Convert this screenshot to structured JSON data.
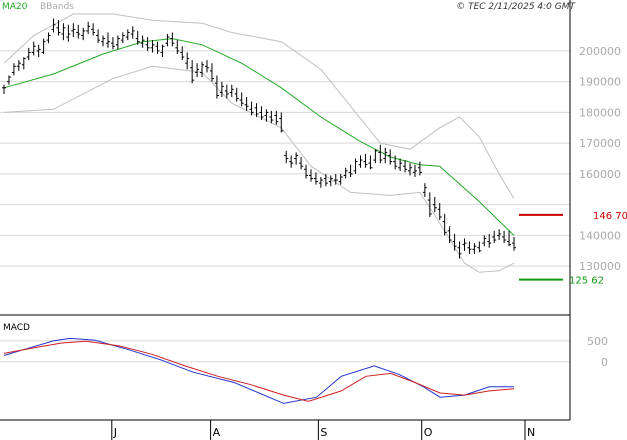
{
  "header": {
    "legend_ma": "MA20",
    "legend_bb": "BBands",
    "copyright": "© TEC 2/11/2025 4:0 GMT"
  },
  "colors": {
    "ma": "#22aa22",
    "bands": "#c0c0c0",
    "price": "#000000",
    "resistance": "#cc0000",
    "support": "#119911",
    "macd": "#2233cc",
    "signal": "#cc2222",
    "grid": "#d8d8d8",
    "axis": "#000000"
  },
  "chart_data": [
    {
      "type": "line",
      "panel": "price",
      "y_ticks": [
        130000,
        140000,
        150000,
        160000,
        170000,
        180000,
        190000,
        200000
      ],
      "y_tick_labels": [
        "130000",
        "140000",
        "",
        "160000",
        "170000",
        "180000",
        "190000",
        "200000"
      ],
      "ylim": [
        119000,
        212000
      ],
      "x_ticks": [
        "J",
        "A",
        "S",
        "O",
        "N"
      ],
      "x_tick_positions": [
        24,
        46,
        70,
        93,
        116
      ],
      "x_range": [
        0,
        127
      ],
      "ohlc": [
        [
          0,
          188000,
          189000,
          186000,
          188000
        ],
        [
          1,
          190000,
          192000,
          189000,
          191500
        ],
        [
          2,
          193000,
          196000,
          192000,
          195000
        ],
        [
          3,
          195000,
          197000,
          193500,
          196000
        ],
        [
          4,
          195500,
          198000,
          194000,
          197500
        ],
        [
          5,
          198000,
          201000,
          197000,
          199500
        ],
        [
          6,
          199500,
          203000,
          198500,
          201500
        ],
        [
          7,
          200000,
          202000,
          198000,
          200500
        ],
        [
          8,
          199500,
          204000,
          199000,
          203000
        ],
        [
          9,
          203500,
          206000,
          202500,
          205000
        ],
        [
          10,
          207000,
          210500,
          206000,
          208500
        ],
        [
          11,
          207500,
          210000,
          205000,
          206000
        ],
        [
          12,
          205500,
          209000,
          203500,
          207500
        ],
        [
          13,
          204500,
          208500,
          203000,
          205500
        ],
        [
          14,
          206500,
          209000,
          204500,
          207000
        ],
        [
          15,
          206000,
          208500,
          204000,
          205500
        ],
        [
          16,
          205000,
          207500,
          203500,
          206500
        ],
        [
          17,
          206500,
          209500,
          205500,
          208000
        ],
        [
          18,
          207000,
          209000,
          205000,
          206000
        ],
        [
          19,
          205000,
          207000,
          202500,
          203500
        ],
        [
          20,
          203000,
          205000,
          201500,
          204000
        ],
        [
          21,
          202500,
          206000,
          201000,
          203000
        ],
        [
          22,
          202500,
          204500,
          200500,
          201500
        ],
        [
          23,
          202000,
          205000,
          200500,
          204000
        ],
        [
          24,
          203500,
          206000,
          202500,
          205000
        ],
        [
          25,
          204500,
          207000,
          203500,
          206000
        ],
        [
          26,
          205500,
          208000,
          204000,
          206500
        ],
        [
          27,
          204000,
          206500,
          202000,
          203000
        ],
        [
          28,
          202500,
          205000,
          201000,
          203500
        ],
        [
          29,
          202000,
          204500,
          200000,
          201000
        ],
        [
          30,
          201000,
          203500,
          199500,
          202000
        ],
        [
          31,
          201500,
          203000,
          199000,
          200000
        ],
        [
          32,
          199500,
          202000,
          198000,
          201500
        ],
        [
          33,
          202500,
          205500,
          201500,
          204500
        ],
        [
          34,
          204000,
          206000,
          201500,
          202500
        ],
        [
          35,
          201000,
          203500,
          199000,
          200000
        ],
        [
          36,
          199500,
          201500,
          197000,
          198000
        ],
        [
          37,
          196000,
          199500,
          194000,
          197500
        ],
        [
          38,
          194500,
          197000,
          189500,
          190500
        ],
        [
          39,
          193000,
          196000,
          191500,
          194000
        ],
        [
          40,
          193000,
          196500,
          191500,
          195500
        ],
        [
          41,
          195000,
          197000,
          193000,
          194500
        ],
        [
          42,
          193500,
          196000,
          190000,
          191000
        ],
        [
          43,
          189500,
          192000,
          184500,
          185500
        ],
        [
          44,
          186500,
          190000,
          185000,
          188500
        ],
        [
          45,
          187000,
          189000,
          184500,
          186000
        ],
        [
          46,
          186500,
          189000,
          185000,
          187500
        ],
        [
          47,
          186000,
          188000,
          183500,
          184500
        ],
        [
          48,
          184000,
          186500,
          182000,
          183000
        ],
        [
          49,
          182500,
          185000,
          180500,
          182000
        ],
        [
          50,
          181000,
          183500,
          179000,
          180000
        ],
        [
          51,
          181500,
          183000,
          178500,
          179500
        ],
        [
          52,
          180000,
          182000,
          177500,
          178500
        ],
        [
          53,
          179000,
          181000,
          177000,
          180000
        ],
        [
          54,
          178500,
          180500,
          176500,
          177500
        ],
        [
          55,
          179000,
          180500,
          176000,
          177000
        ],
        [
          56,
          178000,
          180000,
          173500,
          174000
        ],
        [
          57,
          166000,
          167500,
          163500,
          165000
        ],
        [
          58,
          164000,
          166000,
          162000,
          163500
        ],
        [
          59,
          165000,
          167000,
          163000,
          166000
        ],
        [
          60,
          163500,
          165500,
          161500,
          162500
        ],
        [
          61,
          161500,
          163000,
          158500,
          159500
        ],
        [
          62,
          159500,
          161500,
          157500,
          158500
        ],
        [
          63,
          158500,
          160500,
          156500,
          157500
        ],
        [
          64,
          157000,
          159000,
          155500,
          158000
        ],
        [
          65,
          158500,
          160000,
          156000,
          157000
        ],
        [
          66,
          157500,
          159500,
          156000,
          158500
        ],
        [
          67,
          158000,
          160000,
          156500,
          158000
        ],
        [
          68,
          157500,
          160000,
          156500,
          159000
        ],
        [
          69,
          159500,
          162000,
          158500,
          161000
        ],
        [
          70,
          160500,
          163000,
          159000,
          160000
        ],
        [
          71,
          161000,
          165000,
          160000,
          164000
        ],
        [
          72,
          163000,
          166000,
          162000,
          164500
        ],
        [
          73,
          164000,
          166500,
          162000,
          163000
        ],
        [
          74,
          163500,
          166000,
          161500,
          162000
        ],
        [
          75,
          164500,
          168000,
          163500,
          167500
        ],
        [
          76,
          167000,
          169500,
          163500,
          164500
        ],
        [
          77,
          165000,
          168500,
          163500,
          167000
        ],
        [
          78,
          166000,
          168000,
          163000,
          164000
        ],
        [
          79,
          164000,
          166000,
          161500,
          162500
        ],
        [
          80,
          162000,
          165000,
          161000,
          163500
        ],
        [
          81,
          162500,
          164500,
          160500,
          161500
        ],
        [
          82,
          161000,
          163500,
          159500,
          162000
        ],
        [
          83,
          160500,
          163000,
          159000,
          161000
        ],
        [
          84,
          162000,
          164000,
          159500,
          160500
        ],
        [
          85,
          154000,
          157000,
          152500,
          155500
        ],
        [
          86,
          151500,
          154000,
          146000,
          147000
        ],
        [
          87,
          150000,
          152500,
          147500,
          149000
        ],
        [
          88,
          148500,
          150500,
          145000,
          146000
        ],
        [
          89,
          144500,
          147000,
          140000,
          141000
        ],
        [
          90,
          141500,
          143000,
          137500,
          138500
        ],
        [
          91,
          138000,
          140500,
          135000,
          136500
        ],
        [
          92,
          136000,
          138000,
          132500,
          134000
        ],
        [
          93,
          137000,
          139000,
          135000,
          137500
        ],
        [
          94,
          136000,
          138000,
          134000,
          135500
        ],
        [
          95,
          135500,
          137500,
          134000,
          136500
        ],
        [
          96,
          136000,
          138000,
          134500,
          135000
        ],
        [
          97,
          137500,
          140000,
          136500,
          139000
        ],
        [
          98,
          138000,
          140500,
          136000,
          137500
        ],
        [
          99,
          139500,
          141500,
          137500,
          138500
        ],
        [
          100,
          140000,
          142000,
          138500,
          140500
        ],
        [
          101,
          139500,
          141500,
          137500,
          138500
        ],
        [
          102,
          138000,
          141500,
          136500,
          137000
        ],
        [
          103,
          137500,
          139500,
          135000,
          136000
        ]
      ],
      "ma20": [
        [
          0,
          188000
        ],
        [
          10,
          192500
        ],
        [
          20,
          199000
        ],
        [
          28,
          203000
        ],
        [
          34,
          204000
        ],
        [
          40,
          202000
        ],
        [
          48,
          196000
        ],
        [
          56,
          188000
        ],
        [
          64,
          178500
        ],
        [
          72,
          170500
        ],
        [
          78,
          165500
        ],
        [
          84,
          163000
        ],
        [
          88,
          162500
        ],
        [
          96,
          151000
        ],
        [
          103,
          140000
        ]
      ],
      "bb_upper": [
        [
          0,
          196000
        ],
        [
          6,
          205000
        ],
        [
          14,
          212000
        ],
        [
          22,
          212000
        ],
        [
          30,
          210000
        ],
        [
          40,
          209000
        ],
        [
          46,
          206000
        ],
        [
          56,
          203000
        ],
        [
          64,
          194000
        ],
        [
          70,
          182000
        ],
        [
          76,
          170000
        ],
        [
          82,
          168000
        ],
        [
          88,
          175000
        ],
        [
          92,
          178500
        ],
        [
          96,
          172000
        ],
        [
          100,
          160000
        ],
        [
          103,
          152000
        ]
      ],
      "bb_lower": [
        [
          0,
          180000
        ],
        [
          10,
          181000
        ],
        [
          22,
          191000
        ],
        [
          30,
          195000
        ],
        [
          40,
          193000
        ],
        [
          46,
          183000
        ],
        [
          56,
          175000
        ],
        [
          62,
          162500
        ],
        [
          70,
          154000
        ],
        [
          78,
          153000
        ],
        [
          84,
          154000
        ],
        [
          88,
          144000
        ],
        [
          93,
          131000
        ],
        [
          96,
          128000
        ],
        [
          100,
          128500
        ],
        [
          103,
          131000
        ]
      ],
      "resistance": {
        "value": 146700,
        "label": "146 70"
      },
      "support": {
        "value": 125620,
        "label": "125 62"
      }
    },
    {
      "type": "line",
      "panel": "macd",
      "title": "MACD",
      "y_ticks": [
        500,
        0
      ],
      "y_tick_labels": [
        "500",
        "0"
      ],
      "ylim": [
        -1350,
        1050
      ],
      "macd": [
        [
          0,
          150
        ],
        [
          5,
          300
        ],
        [
          12,
          500
        ],
        [
          16,
          560
        ],
        [
          22,
          520
        ],
        [
          30,
          300
        ],
        [
          38,
          50
        ],
        [
          46,
          -250
        ],
        [
          56,
          -500
        ],
        [
          62,
          -750
        ],
        [
          68,
          -1000
        ],
        [
          76,
          -850
        ],
        [
          82,
          -350
        ],
        [
          90,
          -100
        ],
        [
          96,
          -300
        ],
        [
          102,
          -600
        ],
        [
          106,
          -850
        ],
        [
          112,
          -800
        ],
        [
          118,
          -600
        ],
        [
          124,
          -600
        ]
      ],
      "signal": [
        [
          0,
          200
        ],
        [
          8,
          350
        ],
        [
          14,
          450
        ],
        [
          20,
          490
        ],
        [
          28,
          380
        ],
        [
          36,
          180
        ],
        [
          44,
          -100
        ],
        [
          52,
          -350
        ],
        [
          60,
          -550
        ],
        [
          68,
          -800
        ],
        [
          74,
          -950
        ],
        [
          82,
          -700
        ],
        [
          88,
          -350
        ],
        [
          94,
          -280
        ],
        [
          100,
          -500
        ],
        [
          106,
          -750
        ],
        [
          112,
          -800
        ],
        [
          118,
          -700
        ],
        [
          124,
          -650
        ]
      ]
    }
  ]
}
